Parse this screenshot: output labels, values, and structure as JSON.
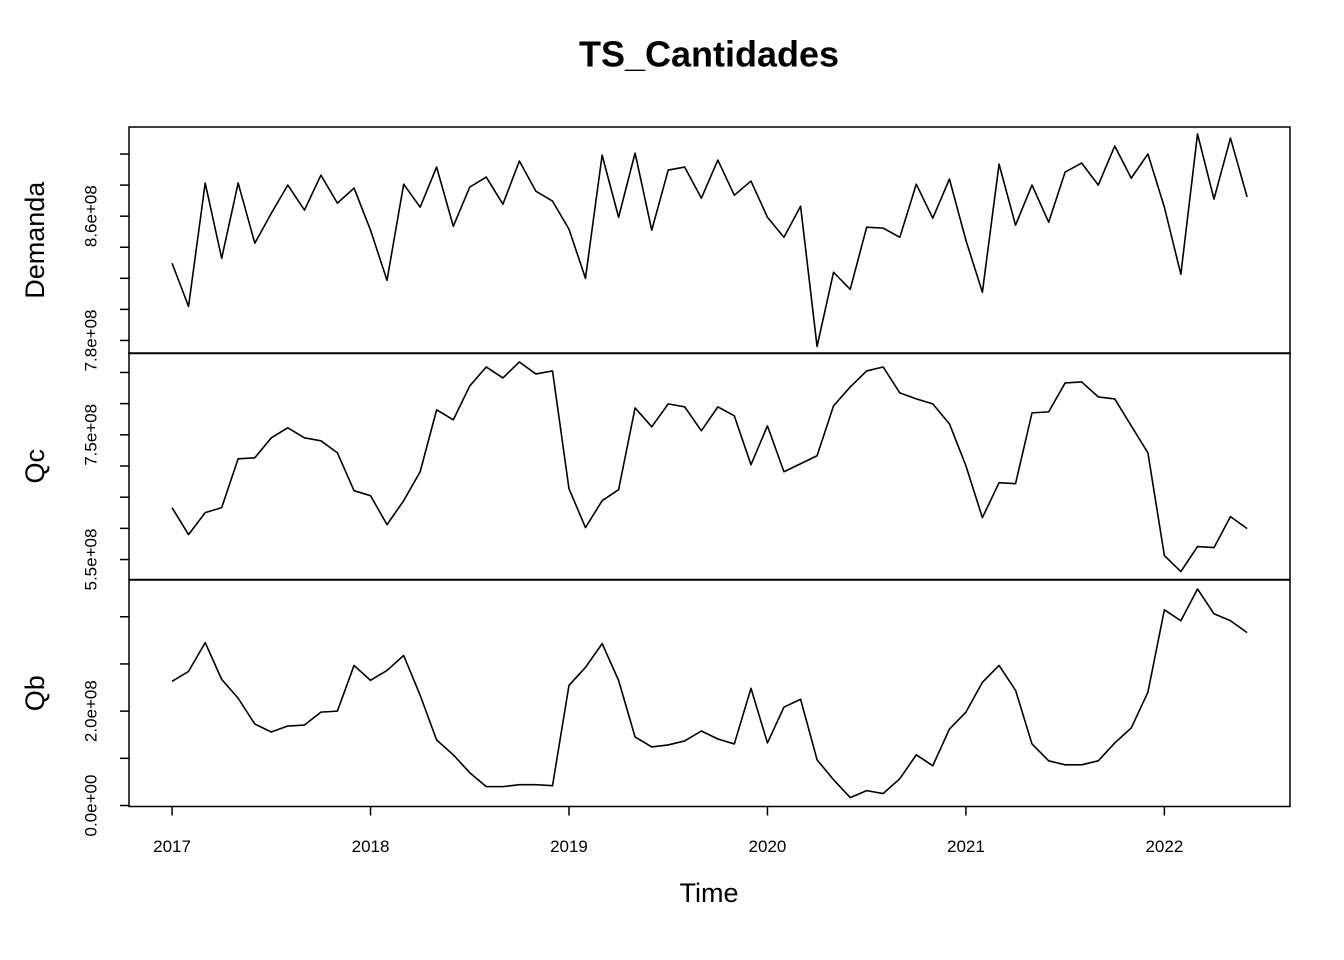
{
  "chart_data": {
    "type": "line",
    "title": "TS_Cantidades",
    "xlabel": "Time",
    "x": [
      2017,
      2017.083,
      2017.167,
      2017.25,
      2017.333,
      2017.417,
      2017.5,
      2017.583,
      2017.667,
      2017.75,
      2017.833,
      2017.917,
      2018,
      2018.083,
      2018.167,
      2018.25,
      2018.333,
      2018.417,
      2018.5,
      2018.583,
      2018.667,
      2018.75,
      2018.833,
      2018.917,
      2019,
      2019.083,
      2019.167,
      2019.25,
      2019.333,
      2019.417,
      2019.5,
      2019.583,
      2019.667,
      2019.75,
      2019.833,
      2019.917,
      2020,
      2020.083,
      2020.167,
      2020.25,
      2020.333,
      2020.417,
      2020.5,
      2020.583,
      2020.667,
      2020.75,
      2020.833,
      2020.917,
      2021,
      2021.083,
      2021.167,
      2021.25,
      2021.333,
      2021.417,
      2021.5,
      2021.583,
      2021.667,
      2021.75,
      2021.833,
      2021.917,
      2022,
      2022.083,
      2022.167,
      2022.25,
      2022.333,
      2022.417
    ],
    "xlim": [
      2016.783,
      2022.633
    ],
    "xticks": [
      2017,
      2018,
      2019,
      2020,
      2021,
      2022
    ],
    "color": "#000000",
    "panels": [
      {
        "ylabel": "Demanda",
        "values": [
          829700000.0,
          801900000.0,
          881300000.0,
          832900000.0,
          881300000.0,
          842600000.0,
          861900000.0,
          880000000.0,
          863900000.0,
          886400000.0,
          868400000.0,
          878100000.0,
          851000000.0,
          818700000.0,
          880600000.0,
          865800000.0,
          891600000.0,
          853500000.0,
          878700000.0,
          885200000.0,
          867700000.0,
          895500000.0,
          876100000.0,
          869700000.0,
          851600000.0,
          820000000.0,
          899300000.0,
          859300000.0,
          900600000.0,
          851000000.0,
          889700000.0,
          891600000.0,
          871600000.0,
          896100000.0,
          873500000.0,
          882600000.0,
          859300000.0,
          846400000.0,
          866400000.0,
          776100000.0,
          823900000.0,
          812900000.0,
          852900000.0,
          852300000.0,
          846400000.0,
          880600000.0,
          858700000.0,
          883900000.0,
          844500000.0,
          811000000.0,
          893500000.0,
          854200000.0,
          880000000.0,
          856100000.0,
          888400000.0,
          894200000.0,
          880000000.0,
          905200000.0,
          884500000.0,
          900000000.0,
          865800000.0,
          822600000.0,
          912900000.0,
          871000000.0,
          910300000.0,
          872300000.0
        ],
        "ylim": [
          771600000.0,
          917400000.0
        ],
        "yticks": [
          {
            "value": 780000000,
            "label": "7.8e+08"
          },
          {
            "value": 860000000,
            "label": "8.6e+08"
          }
        ],
        "yminor": [
          800000000,
          820000000,
          840000000,
          880000000,
          900000000
        ]
      },
      {
        "ylabel": "Qc",
        "values": [
          633200000.0,
          590000000.0,
          625200000.0,
          633200000.0,
          711600000.0,
          713200000.0,
          745200000.0,
          761200000.0,
          745200000.0,
          740400000.0,
          721200000.0,
          660400000.0,
          652400000.0,
          606000000.0,
          644400000.0,
          690800000.0,
          790000000.0,
          774000000.0,
          828400000.0,
          858800000.0,
          841200000.0,
          866800000.0,
          847600000.0,
          852400000.0,
          663600000.0,
          601200000.0,
          644400000.0,
          662000000.0,
          793200000.0,
          762800000.0,
          799600000.0,
          794800000.0,
          756400000.0,
          794800000.0,
          780400000.0,
          702000000.0,
          764400000.0,
          690800000.0,
          703600000.0,
          716400000.0,
          796400000.0,
          826800000.0,
          852400000.0,
          858800000.0,
          817200000.0,
          807600000.0,
          799600000.0,
          767600000.0,
          700400000.0,
          617200000.0,
          673200000.0,
          671600000.0,
          785200000.0,
          786800000.0,
          833200000.0,
          834800000.0,
          810800000.0,
          807600000.0,
          764400000.0,
          721200000.0,
          556400000.0,
          530800000.0,
          570800000.0,
          569200000.0,
          618800000.0,
          599600000.0
        ],
        "ylim": [
          518000000.0,
          881200000.0
        ],
        "yticks": [
          {
            "value": 550000000,
            "label": "5.5e+08"
          },
          {
            "value": 750000000,
            "label": "7.5e+08"
          }
        ],
        "yminor": [
          600000000,
          650000000,
          700000000,
          800000000,
          850000000
        ]
      },
      {
        "ylabel": "Qb",
        "values": [
          263100000.0,
          284200000.0,
          345200000.0,
          267300000.0,
          227300000.0,
          172600000.0,
          155800000.0,
          168400000.0,
          170500000.0,
          197900000.0,
          200000000.0,
          296800000.0,
          265200000.0,
          286300000.0,
          317900000.0,
          233700000.0,
          138900000.0,
          107400000.0,
          69500000.0,
          40000000.0,
          40000000.0,
          44200000.0,
          44200000.0,
          42100000.0,
          254700000.0,
          292600000.0,
          343100000.0,
          265200000.0,
          145200000.0,
          124200000.0,
          128400000.0,
          136800000.0,
          157900000.0,
          141000000.0,
          130500000.0,
          248400000.0,
          132600000.0,
          208400000.0,
          225200000.0,
          96800000.0,
          54700000.0,
          16800000.0,
          31600000.0,
          25300000.0,
          56800000.0,
          107400000.0,
          84200000.0,
          162100000.0,
          197900000.0,
          261000000.0,
          296800000.0,
          244200000.0,
          130500000.0,
          94700000.0,
          86300000.0,
          86300000.0,
          94700000.0,
          132600000.0,
          164200000.0,
          240000000.0,
          414700000.0,
          391500000.0,
          458900000.0,
          406300000.0,
          391500000.0,
          366300000.0
        ],
        "ylim": [
          -2100000.0,
          477900000.0
        ],
        "yticks": [
          {
            "value": 0,
            "label": "0.0e+00"
          },
          {
            "value": 200000000,
            "label": "2.0e+08"
          }
        ],
        "yminor": [
          100000000,
          300000000,
          400000000
        ]
      }
    ]
  }
}
